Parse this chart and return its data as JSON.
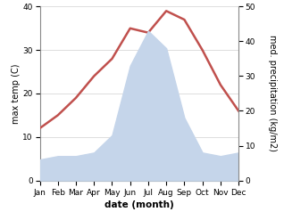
{
  "months": [
    "Jan",
    "Feb",
    "Mar",
    "Apr",
    "May",
    "Jun",
    "Jul",
    "Aug",
    "Sep",
    "Oct",
    "Nov",
    "Dec"
  ],
  "temperature": [
    12,
    15,
    19,
    24,
    28,
    35,
    34,
    39,
    37,
    30,
    22,
    16
  ],
  "precipitation": [
    6,
    7,
    7,
    8,
    13,
    33,
    43,
    38,
    18,
    8,
    7,
    8
  ],
  "temp_color": "#c0504d",
  "precip_color": "#c5d5ea",
  "temp_ylim": [
    0,
    40
  ],
  "precip_ylim": [
    0,
    50
  ],
  "temp_yticks": [
    0,
    10,
    20,
    30,
    40
  ],
  "precip_yticks": [
    0,
    10,
    20,
    30,
    40,
    50
  ],
  "ylabel_left": "max temp (C)",
  "ylabel_right": "med. precipitation (kg/m2)",
  "xlabel": "date (month)",
  "grid_color": "#d0d0d0",
  "temp_linewidth": 1.8,
  "label_fontsize": 7,
  "tick_fontsize": 6.5
}
